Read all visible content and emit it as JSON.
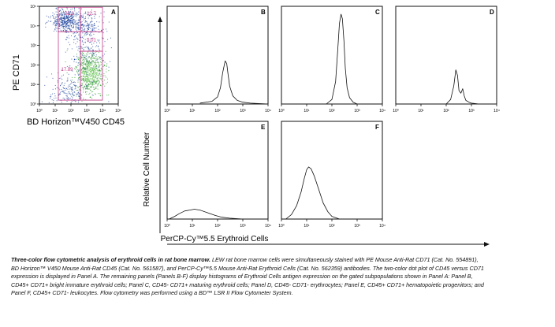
{
  "axis_labels": {
    "dot_y": "PE CD71",
    "dot_x": "BD Horizon™V450 CD45",
    "hist_y": "Relative Cell Number",
    "hist_x": "PerCP-Cy™5.5 Erythroid Cells"
  },
  "caption": {
    "title": "Three-color flow cytometric analysis of erythroid cells in rat bone marrow.",
    "body": "LEW rat bone marrow cells were simultaneously stained with PE Mouse Anti-Rat CD71 (Cat. No. 554891), BD Horizon™ V450 Mouse Anti-Rat CD45 (Cat. No. 561587), and PerCP-Cy™5.5 Mouse Anti-Rat Erythroid Cells (Cat. No. 562359) antibodies. The two-color dot plot of CD45 versus CD71 expression is displayed in Panel A. The remaining panels (Panels B-F) display histograms of Erythroid Cells antigen expression on the gated subpopulations shown in Panel A: Panel B, CD45+ CD71+ bright immature erythroid cells; Panel C, CD45- CD71+ maturing erythroid cells; Panel D, CD45- CD71- erythrocytes; Panel E, CD45+ CD71+ hematopoietic progenitors; and Panel F, CD45+ CD71- leukocytes. Flow cytometry was performed using a BD™ LSR II Flow Cytometer System."
  },
  "colors": {
    "dots_high": "#2a9a2a",
    "dots_low": "#1a3f9a",
    "gate": "#c4408a",
    "line": "#111111"
  },
  "chart_data": [
    {
      "type": "scatter",
      "panel": "A",
      "x_scale": "log",
      "y_scale": "log",
      "xlim": [
        1,
        100000
      ],
      "ylim": [
        1,
        100000
      ],
      "x_ticks": [
        "10⁰",
        "10¹",
        "10²",
        "10³",
        "10⁴",
        "10⁵"
      ],
      "y_ticks": [
        "10⁰",
        "10¹",
        "10²",
        "10³",
        "10⁴",
        "10⁵"
      ],
      "gate_labels": [
        "22.2",
        "12.7",
        "5.01",
        "29.7",
        "17.89"
      ]
    },
    {
      "type": "line",
      "panel": "B",
      "x_scale": "log",
      "xlim": [
        1,
        10000
      ],
      "x_ticks": [
        "10⁰",
        "10¹",
        "10²",
        "10³",
        "10⁴"
      ],
      "x": [
        20,
        60,
        100,
        130,
        160,
        200,
        230,
        260,
        300,
        400,
        600,
        1000,
        2000,
        10000
      ],
      "y": [
        0.01,
        0.03,
        0.08,
        0.18,
        0.35,
        0.48,
        0.45,
        0.33,
        0.2,
        0.09,
        0.04,
        0.02,
        0.01,
        0.0
      ]
    },
    {
      "type": "line",
      "panel": "C",
      "x_scale": "log",
      "xlim": [
        1,
        10000
      ],
      "x_ticks": [
        "10⁰",
        "10¹",
        "10²",
        "10³",
        "10⁴"
      ],
      "x": [
        60,
        100,
        140,
        170,
        200,
        230,
        260,
        300,
        340,
        400,
        500,
        700,
        1000,
        10000
      ],
      "y": [
        0.0,
        0.05,
        0.25,
        0.6,
        0.9,
        1.0,
        0.95,
        0.7,
        0.4,
        0.18,
        0.07,
        0.02,
        0.0,
        0.0
      ]
    },
    {
      "type": "line",
      "panel": "D",
      "x_scale": "log",
      "xlim": [
        1,
        10000
      ],
      "x_ticks": [
        "10⁰",
        "10¹",
        "10²",
        "10³",
        "10⁴"
      ],
      "x": [
        100,
        150,
        200,
        240,
        280,
        320,
        380,
        450,
        520,
        600,
        800,
        1000,
        2000,
        10000
      ],
      "y": [
        0.0,
        0.05,
        0.2,
        0.38,
        0.32,
        0.15,
        0.12,
        0.17,
        0.09,
        0.04,
        0.02,
        0.01,
        0.0,
        0.0
      ]
    },
    {
      "type": "line",
      "panel": "E",
      "x_scale": "log",
      "xlim": [
        1,
        10000
      ],
      "x_ticks": [
        "10⁰",
        "10¹",
        "10²",
        "10³",
        "10⁴"
      ],
      "x": [
        1.2,
        2,
        3,
        5,
        8,
        12,
        20,
        40,
        80,
        150,
        300,
        1000,
        10000
      ],
      "y": [
        0.0,
        0.03,
        0.06,
        0.09,
        0.1,
        0.11,
        0.1,
        0.07,
        0.04,
        0.02,
        0.01,
        0.0,
        0.0
      ]
    },
    {
      "type": "line",
      "panel": "F",
      "x_scale": "log",
      "xlim": [
        1,
        10000
      ],
      "x_ticks": [
        "10⁰",
        "10¹",
        "10²",
        "10³",
        "10⁴"
      ],
      "x": [
        1.5,
        2.5,
        4,
        6,
        8,
        10,
        12,
        15,
        20,
        30,
        45,
        70,
        100,
        200,
        10000
      ],
      "y": [
        0.0,
        0.05,
        0.15,
        0.3,
        0.45,
        0.55,
        0.58,
        0.56,
        0.48,
        0.33,
        0.18,
        0.08,
        0.03,
        0.0,
        0.0
      ]
    }
  ]
}
